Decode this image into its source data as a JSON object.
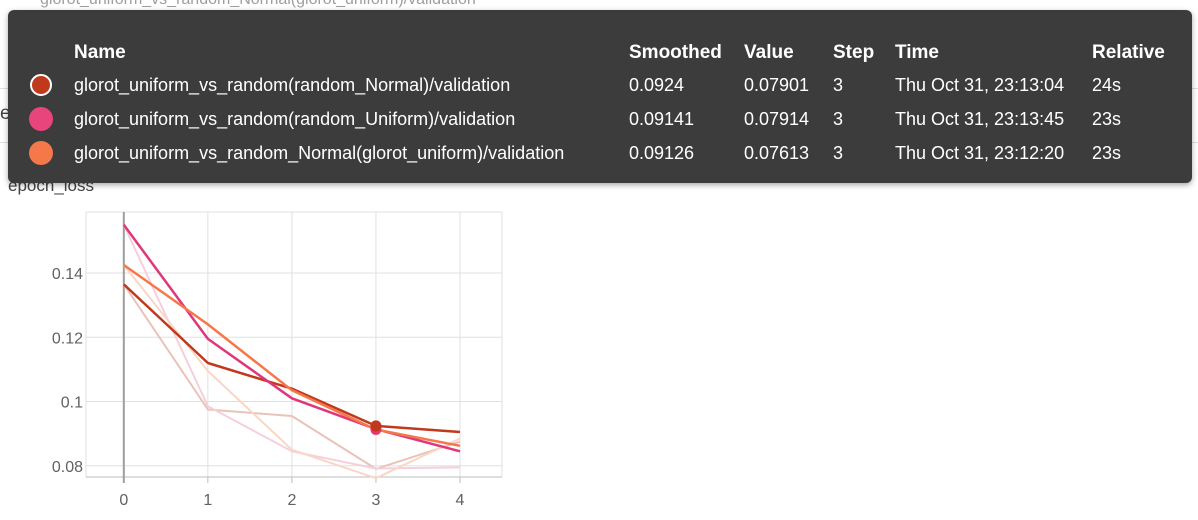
{
  "page": {
    "top_text": "glorot_uniform_vs_random_Normal(glorot_uniform)/validation",
    "behind_label": "epoch_loss"
  },
  "tooltip": {
    "headers": {
      "name": "Name",
      "smoothed": "Smoothed",
      "value": "Value",
      "step": "Step",
      "time": "Time",
      "relative": "Relative"
    },
    "rows": [
      {
        "color": "#c0391d",
        "name": "glorot_uniform_vs_random(random_Normal)/validation",
        "smoothed": "0.0924",
        "value": "0.07901",
        "step": "3",
        "time": "Thu Oct 31, 23:13:04",
        "relative": "24s"
      },
      {
        "color": "#e8457c",
        "name": "glorot_uniform_vs_random(random_Uniform)/validation",
        "smoothed": "0.09141",
        "value": "0.07914",
        "step": "3",
        "time": "Thu Oct 31, 23:13:45",
        "relative": "23s"
      },
      {
        "color": "#f4784a",
        "name": "glorot_uniform_vs_random_Normal(glorot_uniform)/validation",
        "smoothed": "0.09126",
        "value": "0.07613",
        "step": "3",
        "time": "Thu Oct 31, 23:12:20",
        "relative": "23s"
      }
    ]
  },
  "chart_data": {
    "type": "line",
    "title": "epoch_loss",
    "x": [
      0,
      1,
      2,
      3,
      4
    ],
    "xlim": [
      -0.45,
      4.5
    ],
    "ylim": [
      0.0765,
      0.159
    ],
    "xticks": [
      0,
      1,
      2,
      3,
      4
    ],
    "yticks": [
      0.08,
      0.1,
      0.12,
      0.14
    ],
    "ytick_labels": [
      "0.08",
      "0.1",
      "0.12",
      "0.14"
    ],
    "grid": true,
    "hover_step": 3,
    "series": [
      {
        "name": "glorot_uniform_vs_random(random_Normal)/validation",
        "color": "#c0391d",
        "raw_color": "#e9c3b9",
        "smoothed": [
          0.1365,
          0.112,
          0.104,
          0.0924,
          0.0905
        ],
        "raw": [
          0.1365,
          0.0975,
          0.0955,
          0.07901,
          0.0875
        ]
      },
      {
        "name": "glorot_uniform_vs_random(random_Uniform)/validation",
        "color": "#e0377a",
        "raw_color": "#f6cfdc",
        "smoothed": [
          0.155,
          0.1195,
          0.101,
          0.09141,
          0.0845
        ],
        "raw": [
          0.155,
          0.0985,
          0.0845,
          0.07914,
          0.0795
        ]
      },
      {
        "name": "glorot_uniform_vs_random_Normal(glorot_uniform)/validation",
        "color": "#f4784a",
        "raw_color": "#f9d6c6",
        "smoothed": [
          0.1425,
          0.124,
          0.1035,
          0.09126,
          0.0862
        ],
        "raw": [
          0.1425,
          0.1095,
          0.085,
          0.07613,
          0.0885
        ]
      }
    ]
  }
}
